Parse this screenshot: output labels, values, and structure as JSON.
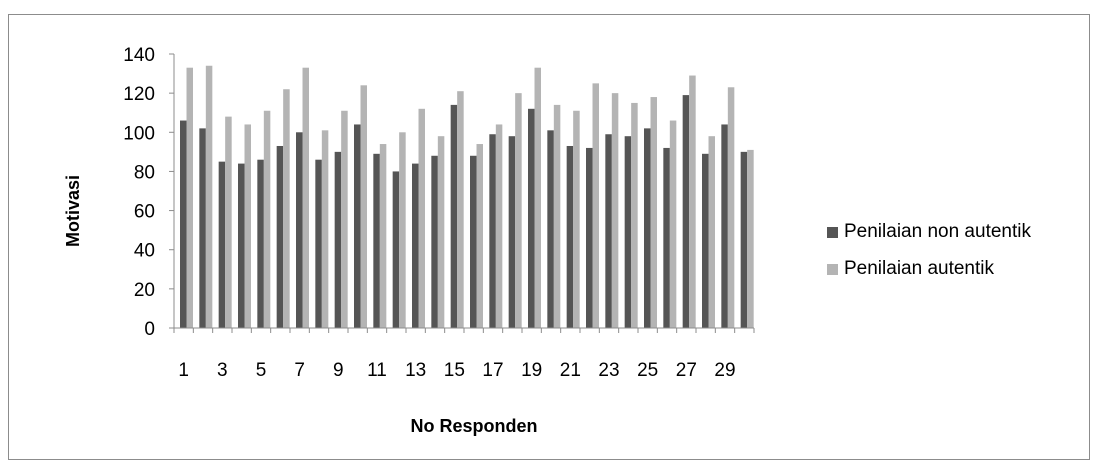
{
  "chart_data": {
    "type": "bar",
    "title": "",
    "xlabel": "No Responden",
    "ylabel": "Motivasi",
    "ylim": [
      0,
      140
    ],
    "yticks": [
      0,
      20,
      40,
      60,
      80,
      100,
      120,
      140
    ],
    "categories": [
      "1",
      "2",
      "3",
      "4",
      "5",
      "6",
      "7",
      "8",
      "9",
      "10",
      "11",
      "12",
      "13",
      "14",
      "15",
      "16",
      "17",
      "18",
      "19",
      "20",
      "21",
      "22",
      "23",
      "24",
      "25",
      "26",
      "27",
      "28",
      "29",
      "30"
    ],
    "x_tick_labels": [
      "1",
      "3",
      "5",
      "7",
      "9",
      "11",
      "13",
      "15",
      "17",
      "19",
      "21",
      "23",
      "25",
      "27",
      "29"
    ],
    "grid": false,
    "legend_position": "right",
    "series": [
      {
        "name": "Penilaian non autentik",
        "color": "#555555",
        "values": [
          106,
          102,
          85,
          84,
          86,
          93,
          100,
          86,
          90,
          104,
          89,
          80,
          84,
          88,
          114,
          88,
          99,
          98,
          112,
          101,
          93,
          92,
          99,
          98,
          102,
          92,
          119,
          89,
          104,
          90
        ]
      },
      {
        "name": "Penilaian autentik",
        "color": "#b4b4b4",
        "values": [
          133,
          134,
          108,
          104,
          111,
          122,
          133,
          101,
          111,
          124,
          94,
          100,
          112,
          98,
          121,
          94,
          104,
          120,
          133,
          114,
          111,
          125,
          120,
          115,
          118,
          106,
          129,
          98,
          123,
          91
        ]
      }
    ]
  }
}
